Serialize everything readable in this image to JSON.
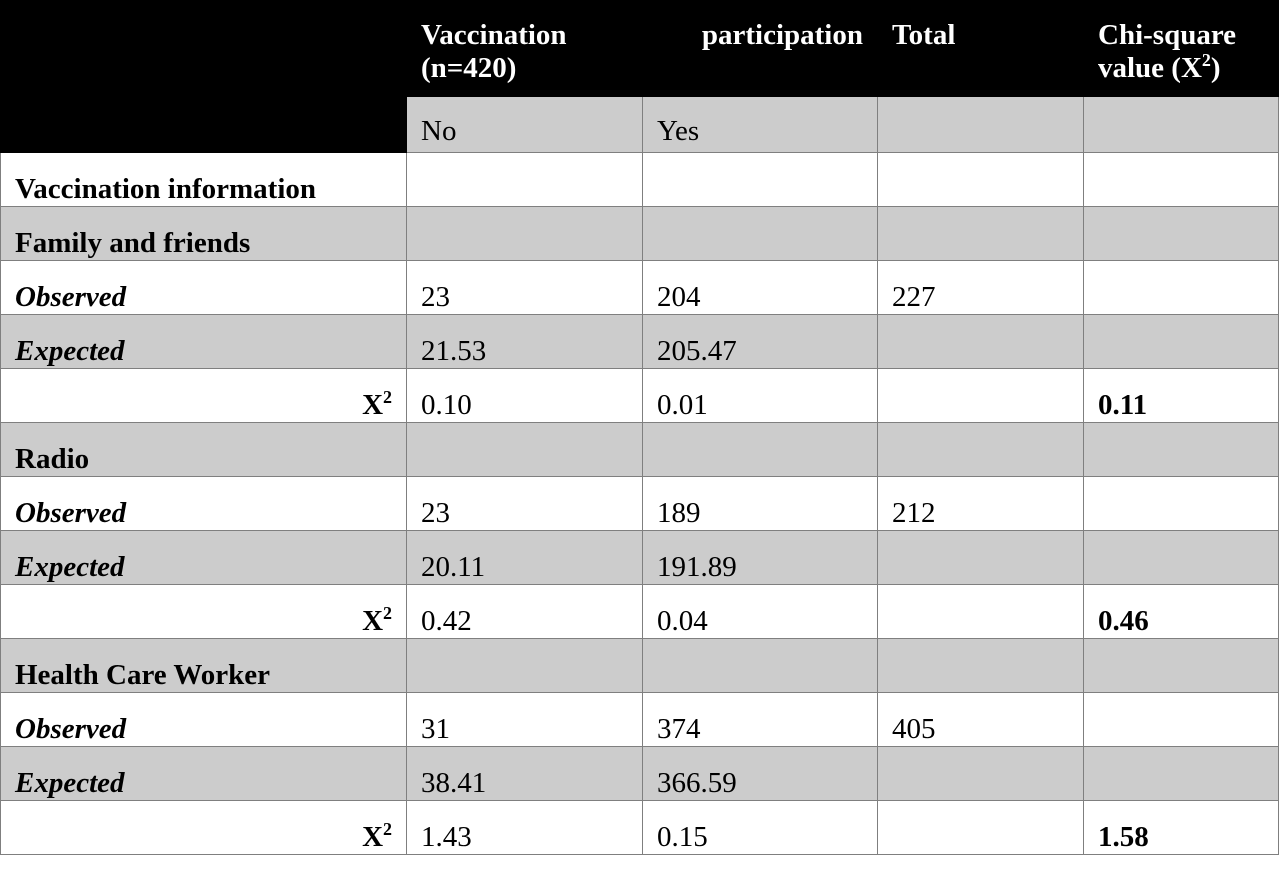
{
  "header": {
    "vaccination_participation_word1": "Vaccination",
    "vaccination_participation_word2": "participation",
    "vaccination_participation_n": "(n=420)",
    "total": "Total",
    "chi_square_line1": "Chi-square",
    "chi_square_line2_prefix": "value (X",
    "chi_square_sup": "2",
    "chi_square_line2_suffix": ")",
    "no": "No",
    "yes": "Yes"
  },
  "section_title": "Vaccination information",
  "row_labels": {
    "observed": "Observed",
    "expected": "Expected",
    "x2_base": "X",
    "x2_sup": "2"
  },
  "groups": [
    {
      "name": "Family and friends",
      "observed": {
        "no": "23",
        "yes": "204",
        "total": "227"
      },
      "expected": {
        "no": "21.53",
        "yes": "205.47"
      },
      "x2": {
        "no": "0.10",
        "yes": "0.01",
        "chi": "0.11"
      }
    },
    {
      "name": "Radio",
      "observed": {
        "no": "23",
        "yes": "189",
        "total": "212"
      },
      "expected": {
        "no": "20.11",
        "yes": "191.89"
      },
      "x2": {
        "no": "0.42",
        "yes": "0.04",
        "chi": "0.46"
      }
    },
    {
      "name": "Health Care Worker",
      "observed": {
        "no": "31",
        "yes": "374",
        "total": "405"
      },
      "expected": {
        "no": "38.41",
        "yes": "366.59"
      },
      "x2": {
        "no": "1.43",
        "yes": "0.15",
        "chi": "1.58"
      }
    }
  ]
}
